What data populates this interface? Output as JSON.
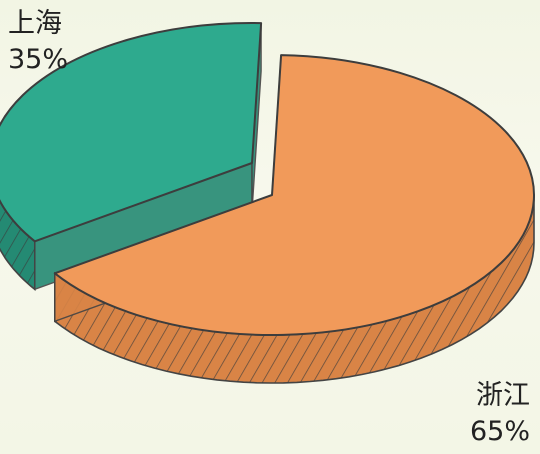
{
  "chart_data": {
    "type": "pie",
    "exploded": true,
    "style": "3d-hand-drawn",
    "slices": [
      {
        "label": "上海",
        "percent_label": "35%",
        "value": 35,
        "color": "#2eaa8e",
        "side_color": "#248a73"
      },
      {
        "label": "浙江",
        "percent_label": "65%",
        "value": 65,
        "color": "#f19a5a",
        "side_color": "#d98446"
      }
    ]
  }
}
